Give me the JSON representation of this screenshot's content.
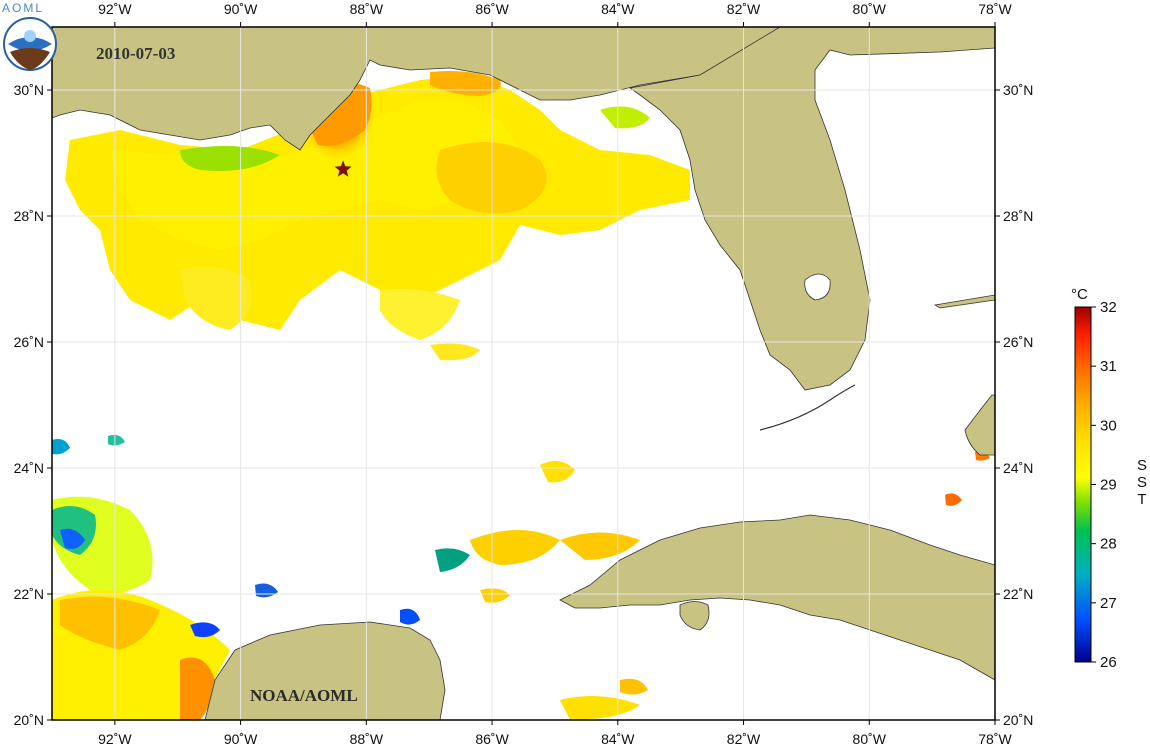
{
  "map": {
    "date": "2010-07-03",
    "credit": "NOAA/AOML",
    "logo_text": "AOML",
    "variable": "SST",
    "unit": "°C",
    "lon_labels_top": [
      "92˚W",
      "90˚W",
      "88˚W",
      "86˚W",
      "84˚W",
      "82˚W",
      "80˚W",
      "78˚W"
    ],
    "lon_labels_bottom": [
      "92˚W",
      "90˚W",
      "88˚W",
      "86˚W",
      "84˚W",
      "82˚W",
      "80˚W",
      "78˚W"
    ],
    "lat_labels_left": [
      "30˚N",
      "28˚N",
      "26˚N",
      "24˚N",
      "22˚N",
      "20˚N"
    ],
    "lat_labels_right": [
      "30˚N",
      "28˚N",
      "26˚N",
      "24˚N",
      "22˚N",
      "20˚N"
    ],
    "lon_values": [
      -92,
      -90,
      -88,
      -86,
      -84,
      -82,
      -80,
      -78
    ],
    "lat_values": [
      30,
      28,
      26,
      24,
      22,
      20
    ],
    "lon_range": [
      -93,
      -78
    ],
    "lat_range": [
      20,
      31
    ],
    "colorbar": {
      "min": 26,
      "max": 32,
      "ticks": [
        "26",
        "27",
        "28",
        "29",
        "30",
        "31",
        "32"
      ],
      "colors": [
        "#00008f",
        "#0050ff",
        "#00b0c0",
        "#00c050",
        "#80e000",
        "#ffff00",
        "#ffc000",
        "#ff7000",
        "#ff2000",
        "#a00000"
      ]
    },
    "marker": {
      "name": "Deepwater Horizon site",
      "lon": -88.37,
      "lat": 28.74,
      "color": "#7a1010"
    },
    "colors": {
      "land": "#c8c383",
      "coast": "#333333",
      "ocean_missing": "#ffffff"
    }
  }
}
